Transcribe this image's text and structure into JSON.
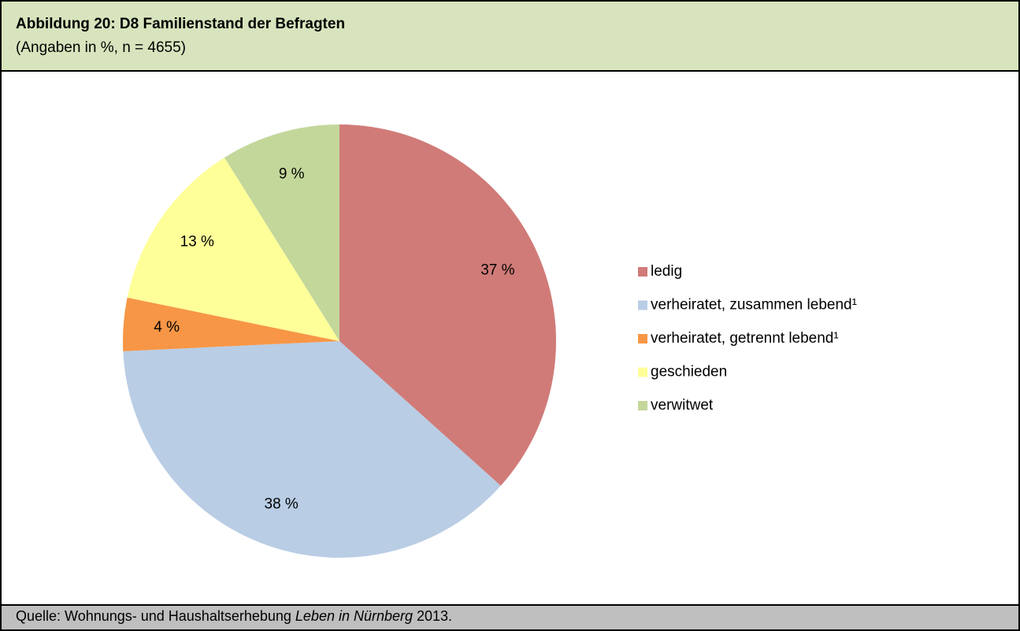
{
  "header": {
    "title": "Abbildung 20: D8 Familienstand der Befragten",
    "subtitle": "(Angaben in %, n = 4655)"
  },
  "chart_data": {
    "type": "pie",
    "categories": [
      "ledig",
      "verheiratet, zusammen lebend¹",
      "verheiratet, getrennt lebend¹",
      "geschieden",
      "verwitwet"
    ],
    "values": [
      37,
      38,
      4,
      13,
      9
    ],
    "value_labels": [
      "37 %",
      "38 %",
      "4 %",
      "13 %",
      "9 %"
    ],
    "colors": [
      "#d07b78",
      "#b9cde5",
      "#f79646",
      "#ffff99",
      "#c4d79b"
    ],
    "legend": "right"
  },
  "footer": {
    "prefix": "Quelle: Wohnungs- und Haushaltserhebung ",
    "italic": "Leben in Nürnberg",
    "suffix": " 2013."
  }
}
